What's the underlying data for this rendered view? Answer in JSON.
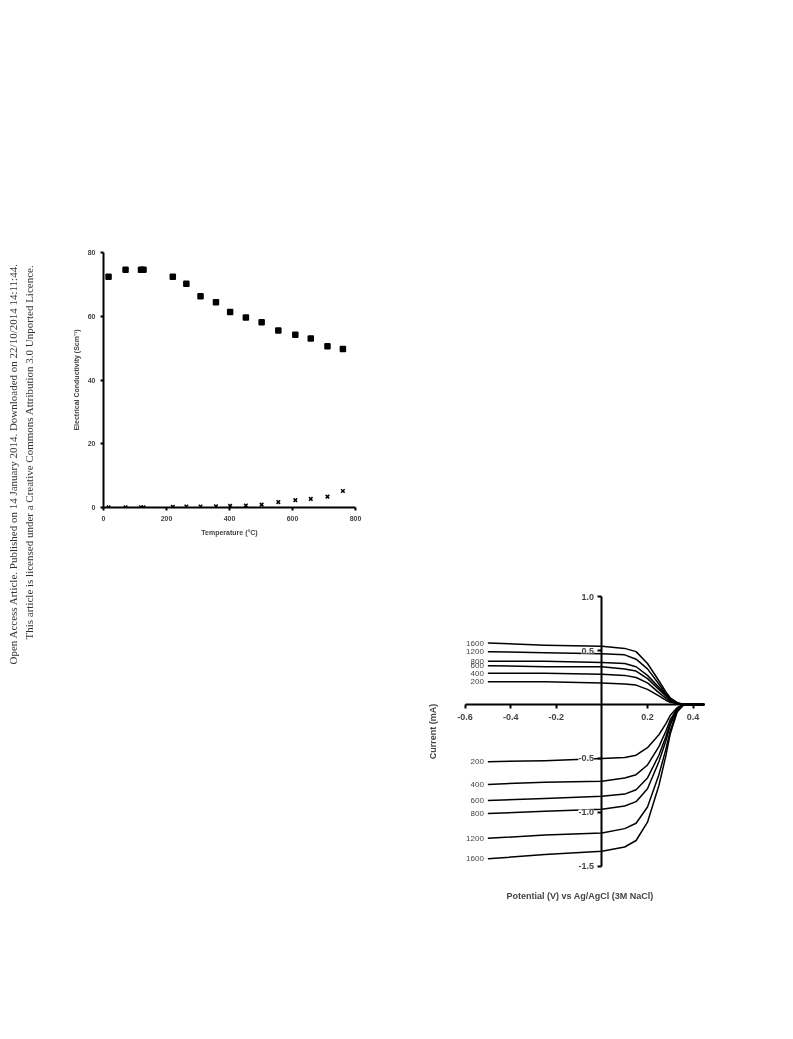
{
  "chart_data": [
    {
      "type": "scatter",
      "xlabel": "Temperature (°C)",
      "ylabel": "Electrical Conductivity (Scm⁻¹)",
      "xlim": [
        0,
        800
      ],
      "ylim": [
        0,
        80
      ],
      "xticks": [
        0,
        200,
        400,
        600,
        800
      ],
      "yticks": [
        0,
        20,
        40,
        60,
        80
      ],
      "x": [
        16,
        70,
        119,
        127,
        220,
        263,
        308,
        357,
        402,
        452,
        502,
        555,
        609,
        658,
        711,
        760
      ],
      "series": [
        {
          "color": "#000000",
          "marker": "square",
          "values": [
            72.4,
            74.6,
            74.6,
            74.6,
            72.4,
            70.2,
            66.3,
            64.4,
            61.3,
            59.6,
            58.1,
            55.5,
            54.2,
            53.0,
            50.6,
            49.7
          ]
        },
        {
          "color": "#000000",
          "marker": "cross",
          "values": [
            0.1,
            0.1,
            0.1,
            0.1,
            0.2,
            0.3,
            0.3,
            0.4,
            0.5,
            0.6,
            0.9,
            1.7,
            2.3,
            2.7,
            3.4,
            5.2
          ]
        }
      ],
      "annotations": [
        "Open Access Article. Published on 14 January 2014. Downloaded on 22/10/2014 14:11:44.",
        "This article is licensed under a Creative Commons Attribution 3.0 Unported Licence."
      ]
    },
    {
      "type": "line",
      "xlabel": "Potential (V) vs Ag/AgCl (3M NaCl)",
      "ylabel": "Current (mA)",
      "xlim": [
        -0.6,
        0.45
      ],
      "ylim": [
        -1.5,
        1.0
      ],
      "xticks": [
        {
          "value": -0.6,
          "label": "-0.6"
        },
        {
          "value": -0.4,
          "label": "-0.4"
        },
        {
          "value": -0.2,
          "label": "-0.2"
        },
        {
          "value": 0.2,
          "label": "0.2"
        },
        {
          "value": 0.4,
          "label": "0.4"
        }
      ],
      "yticks": [
        {
          "value": 1.0,
          "label": "1.0"
        },
        {
          "value": 0.5,
          "label": "0.5"
        },
        {
          "value": -0.5,
          "label": "-0.5"
        },
        {
          "value": -1.0,
          "label": "-1.0"
        },
        {
          "value": -1.5,
          "label": "-1.5"
        }
      ],
      "x": [
        -0.5,
        -0.25,
        0,
        0.1,
        0.15,
        0.2,
        0.25,
        0.28,
        0.3,
        0.33,
        0.36,
        0.4,
        0.45
      ],
      "series": [
        {
          "name": "1600",
          "color": "#000000",
          "values": [
            0.57,
            0.55,
            0.54,
            0.52,
            0.49,
            0.38,
            0.22,
            0.12,
            0.06,
            0.02,
            0,
            0,
            0
          ]
        },
        {
          "name": "1200",
          "color": "#000000",
          "values": [
            0.49,
            0.48,
            0.47,
            0.46,
            0.42,
            0.33,
            0.19,
            0.1,
            0.06,
            0.01,
            0,
            0,
            0
          ]
        },
        {
          "name": "800",
          "color": "#000000",
          "values": [
            0.4,
            0.4,
            0.39,
            0.38,
            0.35,
            0.27,
            0.16,
            0.09,
            0.05,
            0.01,
            0,
            0,
            0
          ]
        },
        {
          "name": "600",
          "color": "#000000",
          "values": [
            0.36,
            0.35,
            0.35,
            0.33,
            0.31,
            0.24,
            0.14,
            0.08,
            0.04,
            0.01,
            0,
            0,
            0
          ]
        },
        {
          "name": "400",
          "color": "#000000",
          "values": [
            0.29,
            0.29,
            0.28,
            0.27,
            0.25,
            0.2,
            0.11,
            0.06,
            0.03,
            0.01,
            0,
            0,
            0
          ]
        },
        {
          "name": "200",
          "color": "#000000",
          "values": [
            0.21,
            0.21,
            0.2,
            0.19,
            0.18,
            0.14,
            0.08,
            0.04,
            0.02,
            0.01,
            0,
            0,
            0
          ]
        },
        {
          "name": "200",
          "color": "#000000",
          "values": [
            -0.53,
            -0.52,
            -0.5,
            -0.49,
            -0.47,
            -0.4,
            -0.28,
            -0.18,
            -0.1,
            -0.03,
            0,
            0,
            0
          ]
        },
        {
          "name": "400",
          "color": "#000000",
          "values": [
            -0.74,
            -0.72,
            -0.71,
            -0.68,
            -0.65,
            -0.56,
            -0.39,
            -0.25,
            -0.14,
            -0.04,
            0,
            0,
            0
          ]
        },
        {
          "name": "600",
          "color": "#000000",
          "values": [
            -0.89,
            -0.87,
            -0.85,
            -0.83,
            -0.79,
            -0.68,
            -0.47,
            -0.3,
            -0.17,
            -0.04,
            0,
            0,
            0
          ]
        },
        {
          "name": "800",
          "color": "#000000",
          "values": [
            -1.01,
            -0.99,
            -0.97,
            -0.94,
            -0.9,
            -0.78,
            -0.53,
            -0.34,
            -0.19,
            -0.05,
            0,
            0,
            0
          ]
        },
        {
          "name": "1200",
          "color": "#000000",
          "values": [
            -1.24,
            -1.21,
            -1.19,
            -1.15,
            -1.1,
            -0.95,
            -0.65,
            -0.42,
            -0.24,
            -0.06,
            0,
            0,
            0
          ]
        },
        {
          "name": "1600",
          "color": "#000000",
          "values": [
            -1.43,
            -1.39,
            -1.36,
            -1.32,
            -1.26,
            -1.09,
            -0.75,
            -0.48,
            -0.27,
            -0.07,
            0,
            0,
            0
          ]
        }
      ]
    }
  ]
}
